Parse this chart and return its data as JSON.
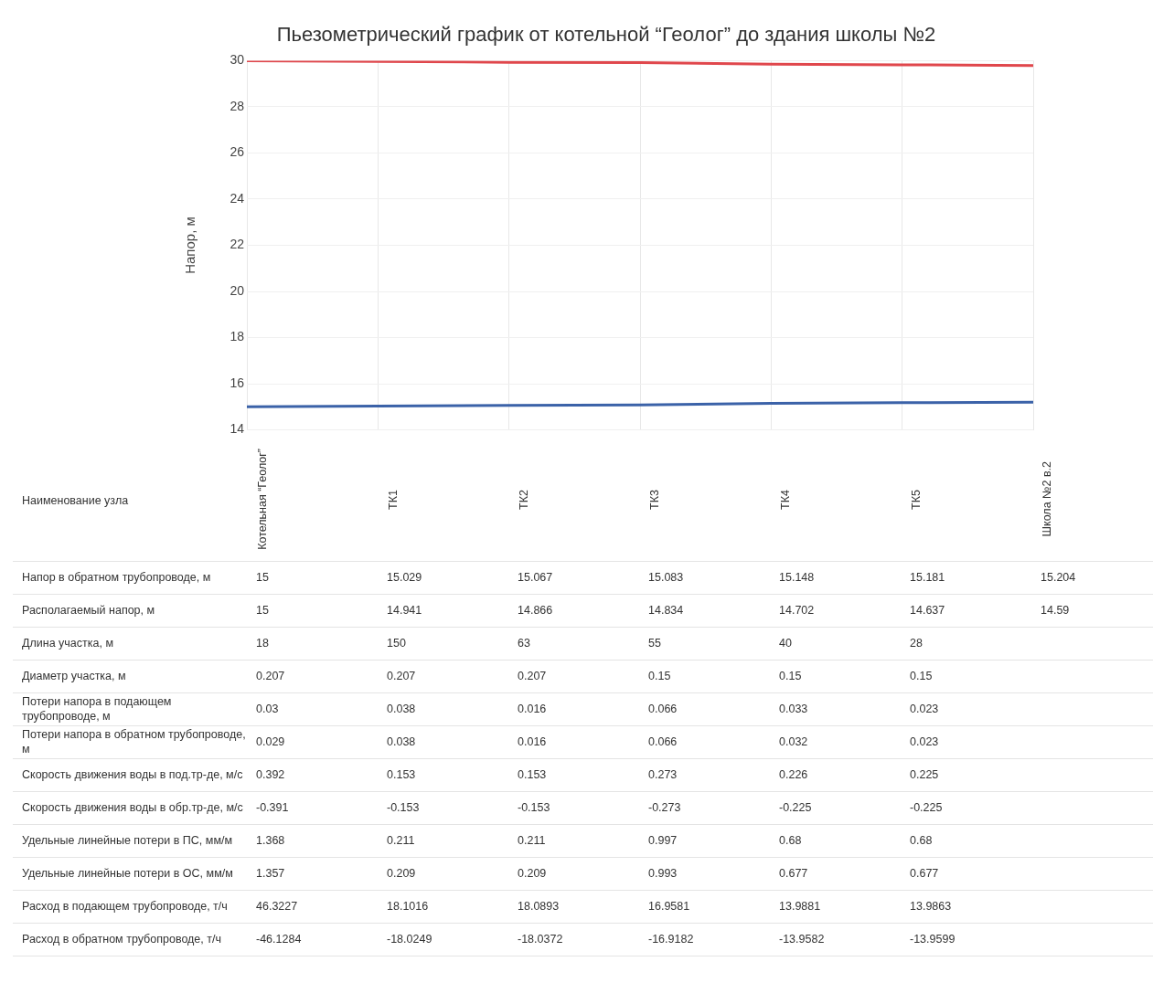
{
  "chart_data": {
    "type": "line",
    "title": "Пьезометрический график от котельной “Геолог” до здания школы №2",
    "ylabel": "Напор, м",
    "annotations": [
      "Наименование узла"
    ],
    "categories": [
      "Котельная “Геолог”",
      "ТК1",
      "ТК2",
      "ТК3",
      "ТК4",
      "ТК5",
      "Школа №2 в.2"
    ],
    "ylim": [
      14,
      30
    ],
    "yticks": [
      14,
      16,
      18,
      20,
      22,
      24,
      26,
      28,
      30
    ],
    "grid": true,
    "legend": false,
    "marker": "none",
    "line_style": "solid",
    "series": [
      {
        "color": "#e0474c",
        "values": [
          30,
          29.97,
          29.93,
          29.92,
          29.85,
          29.82,
          29.79
        ]
      },
      {
        "name": "Напор в обратном трубопроводе, м",
        "color": "#3b62a8",
        "values": [
          15,
          15.029,
          15.067,
          15.083,
          15.148,
          15.181,
          15.204
        ],
        "value_labels": [
          "15",
          "15.029",
          "15.067",
          "15.083",
          "15.148",
          "15.181",
          "15.204"
        ]
      },
      {
        "type": "other",
        "name": "Располагаемый напор, м",
        "values": [
          null,
          null,
          null,
          null,
          null,
          null,
          null
        ],
        "value_labels": [
          "15",
          "14.941",
          "14.866",
          "14.834",
          "14.702",
          "14.637",
          "14.59"
        ]
      },
      {
        "type": "other",
        "name": "Длина участка, м",
        "values": [
          null,
          null,
          null,
          null,
          null,
          null,
          null
        ],
        "value_labels": [
          "18",
          "150",
          "63",
          "55",
          "40",
          "28",
          null
        ]
      },
      {
        "type": "other",
        "name": "Диаметр участка, м",
        "values": [
          null,
          null,
          null,
          null,
          null,
          null,
          null
        ],
        "value_labels": [
          "0.207",
          "0.207",
          "0.207",
          "0.15",
          "0.15",
          "0.15",
          null
        ]
      },
      {
        "type": "other",
        "name": "Потери напора в подающем трубопроводе, м",
        "values": [
          null,
          null,
          null,
          null,
          null,
          null,
          null
        ],
        "value_labels": [
          "0.03",
          "0.038",
          "0.016",
          "0.066",
          "0.033",
          "0.023",
          null
        ]
      },
      {
        "type": "other",
        "name": "Потери напора в обратном трубопроводе, м",
        "values": [
          null,
          null,
          null,
          null,
          null,
          null,
          null
        ],
        "value_labels": [
          "0.029",
          "0.038",
          "0.016",
          "0.066",
          "0.032",
          "0.023",
          null
        ]
      },
      {
        "type": "other",
        "name": "Скорость движения воды в под.тр-де, м/с",
        "values": [
          null,
          null,
          null,
          null,
          null,
          null,
          null
        ],
        "value_labels": [
          "0.392",
          "0.153",
          "0.153",
          "0.273",
          "0.226",
          "0.225",
          null
        ]
      },
      {
        "type": "other",
        "name": "Скорость движения воды в обр.тр-де, м/с",
        "values": [
          null,
          null,
          null,
          null,
          null,
          null,
          null
        ],
        "value_labels": [
          "-0.391",
          "-0.153",
          "-0.153",
          "-0.273",
          "-0.225",
          "-0.225",
          null
        ]
      },
      {
        "type": "other",
        "name": "Удельные линейные потери в ПС, мм/м",
        "values": [
          null,
          null,
          null,
          null,
          null,
          null,
          null
        ],
        "value_labels": [
          "1.368",
          "0.211",
          "0.211",
          "0.997",
          "0.68",
          "0.68",
          null
        ]
      },
      {
        "type": "other",
        "name": "Удельные линейные потери в ОС, мм/м",
        "values": [
          null,
          null,
          null,
          null,
          null,
          null,
          null
        ],
        "value_labels": [
          "1.357",
          "0.209",
          "0.209",
          "0.993",
          "0.677",
          "0.677",
          null
        ]
      },
      {
        "type": "other",
        "name": "Расход в подающем трубопроводе, т/ч",
        "values": [
          null,
          null,
          null,
          null,
          null,
          null,
          null
        ],
        "value_labels": [
          "46.3227",
          "18.1016",
          "18.0893",
          "16.9581",
          "13.9881",
          "13.9863",
          null
        ]
      },
      {
        "type": "other",
        "name": "Расход в обратном трубопроводе, т/ч",
        "values": [
          null,
          null,
          null,
          null,
          null,
          null,
          null
        ],
        "value_labels": [
          "-46.1284",
          "-18.0249",
          "-18.0372",
          "-16.9182",
          "-13.9582",
          "-13.9599",
          null
        ]
      }
    ]
  }
}
